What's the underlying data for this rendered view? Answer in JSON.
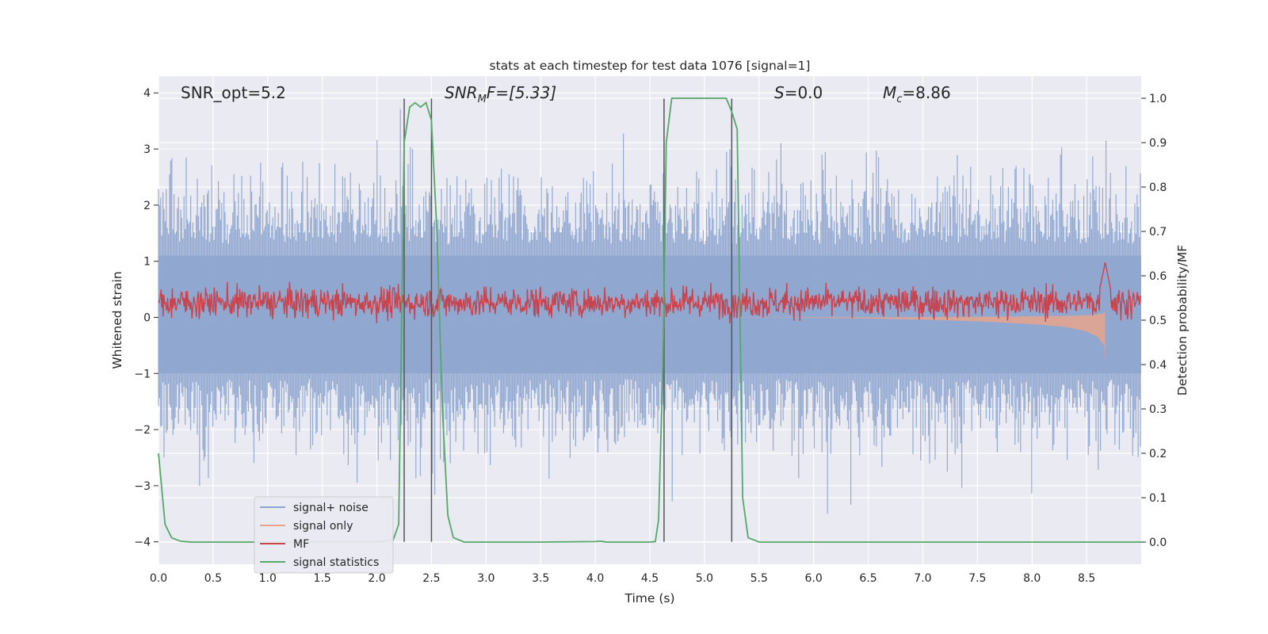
{
  "chart_data": {
    "type": "line",
    "title": "stats at each timestep for test data 1076 [signal=1]",
    "xlabel": "Time (s)",
    "ylabel_left": "Whitened strain",
    "ylabel_right": "Detection probability/MF",
    "xlim": [
      0.0,
      9.0
    ],
    "ylim_left": [
      -4.4,
      4.3
    ],
    "ylim_right": [
      -0.05,
      1.05
    ],
    "xticks": [
      0.0,
      0.5,
      1.0,
      1.5,
      2.0,
      2.5,
      3.0,
      3.5,
      4.0,
      4.5,
      5.0,
      5.5,
      6.0,
      6.5,
      7.0,
      7.5,
      8.0,
      8.5
    ],
    "xtick_labels": [
      "0.0",
      "0.5",
      "1.0",
      "1.5",
      "2.0",
      "2.5",
      "3.0",
      "3.5",
      "4.0",
      "4.5",
      "5.0",
      "5.5",
      "6.0",
      "6.5",
      "7.0",
      "7.5",
      "8.0",
      "8.5"
    ],
    "yticks_left": [
      -4,
      -3,
      -2,
      -1,
      0,
      1,
      2,
      3,
      4
    ],
    "ytick_labels_left": [
      "−4",
      "−3",
      "−2",
      "−1",
      "0",
      "1",
      "2",
      "3",
      "4"
    ],
    "yticks_right": [
      0.0,
      0.1,
      0.2,
      0.3,
      0.4,
      0.5,
      0.6,
      0.7,
      0.8,
      0.9,
      1.0
    ],
    "ytick_labels_right": [
      "0.0",
      "0.1",
      "0.2",
      "0.3",
      "0.4",
      "0.5",
      "0.6",
      "0.7",
      "0.8",
      "0.9",
      "1.0"
    ],
    "grid": true,
    "annotations": {
      "snr_opt": "SNR_opt=5.2",
      "snr_mf_var": "SNR",
      "snr_mf_sub": "M",
      "snr_mf_rest": "F=[5.33]",
      "s_var": "S",
      "s_rest": "=0.0",
      "mc_var": "M",
      "mc_sub": "c",
      "mc_rest": "=8.86"
    },
    "legend": {
      "position": "lower-left",
      "entries": [
        {
          "label": "signal+ noise",
          "color": "#8fa6d0"
        },
        {
          "label": "signal only",
          "color": "#e8a58c"
        },
        {
          "label": "MF",
          "color": "#c9444d"
        },
        {
          "label": "signal statistics",
          "color": "#55a868"
        }
      ]
    },
    "vertical_lines_x": [
      2.25,
      2.5,
      4.63,
      5.25
    ],
    "series": [
      {
        "name": "signal statistics",
        "axis": "right",
        "color": "#55a868",
        "x": [
          0.0,
          0.06,
          0.12,
          0.2,
          0.3,
          0.5,
          1.0,
          1.5,
          2.0,
          2.15,
          2.2,
          2.25,
          2.3,
          2.35,
          2.4,
          2.45,
          2.5,
          2.55,
          2.6,
          2.65,
          2.7,
          2.8,
          3.0,
          3.5,
          4.0,
          4.05,
          4.1,
          4.5,
          4.55,
          4.58,
          4.62,
          4.65,
          4.7,
          4.75,
          4.8,
          5.0,
          5.2,
          5.25,
          5.3,
          5.35,
          5.4,
          5.5,
          6.0,
          7.0,
          8.0,
          9.0
        ],
        "values": [
          0.2,
          0.04,
          0.01,
          0.002,
          0.0,
          0.0,
          0.0,
          0.0,
          0.0,
          0.005,
          0.04,
          0.9,
          0.98,
          0.99,
          0.98,
          0.99,
          0.95,
          0.7,
          0.3,
          0.06,
          0.01,
          0.0,
          0.0,
          0.0,
          0.001,
          0.002,
          0.0,
          0.0,
          0.001,
          0.05,
          0.4,
          0.9,
          1.0,
          1.0,
          1.0,
          1.0,
          1.0,
          0.97,
          0.93,
          0.1,
          0.01,
          0.0,
          0.0,
          0.0,
          0.0,
          0.0
        ]
      },
      {
        "name": "signal only",
        "axis": "left",
        "color": "#e8a58c",
        "envelope_x": [
          5.2,
          6.0,
          6.5,
          7.0,
          7.5,
          8.0,
          8.3,
          8.5,
          8.6,
          8.66,
          8.67
        ],
        "envelope_amplitude": [
          0.0,
          0.01,
          0.02,
          0.04,
          0.07,
          0.12,
          0.17,
          0.25,
          0.35,
          0.5,
          0.8
        ]
      },
      {
        "name": "MF",
        "axis": "right",
        "color": "#c9444d",
        "baseline": 0.54,
        "noise_amplitude": 0.035,
        "peak": {
          "x": 8.67,
          "value": 0.63
        }
      },
      {
        "name": "signal+ noise",
        "axis": "left",
        "color": "#8fa6d0",
        "core_band": [
          -1.0,
          1.1
        ],
        "max_abs": 3.9
      }
    ]
  }
}
